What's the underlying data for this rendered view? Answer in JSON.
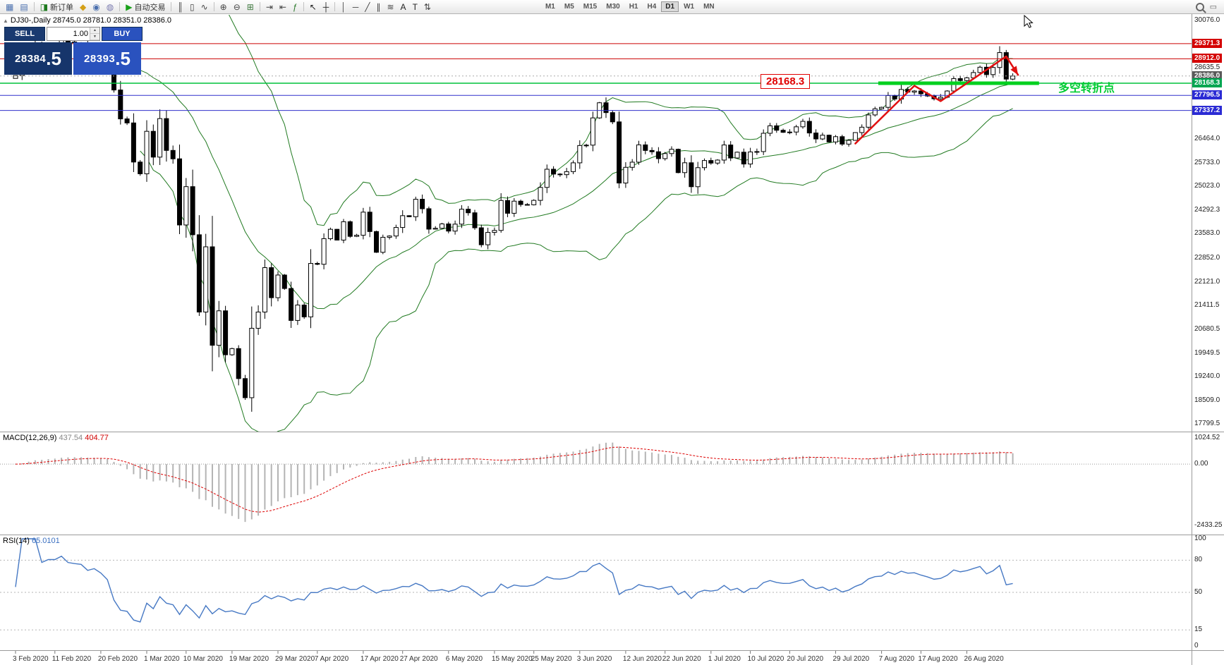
{
  "toolbar": {
    "items": [
      {
        "name": "new-chart",
        "glyph": "▦",
        "color": "#4a6fae"
      },
      {
        "name": "profiles",
        "glyph": "▤",
        "color": "#4a6fae"
      },
      {
        "sep": true
      },
      {
        "name": "new-order",
        "glyph": "◨",
        "color": "#1d7a1d",
        "label": "新订单"
      },
      {
        "name": "mql-wizard",
        "glyph": "◆",
        "color": "#d4a017"
      },
      {
        "name": "strategy-tester",
        "glyph": "◉",
        "color": "#4a6fae"
      },
      {
        "name": "data-window",
        "glyph": "◍",
        "color": "#7a7ab0"
      },
      {
        "sep": true
      },
      {
        "name": "auto-trading",
        "glyph": "▶",
        "color": "#18a018",
        "label": "自动交易"
      },
      {
        "sep": true
      },
      {
        "name": "bar-chart",
        "glyph": "║",
        "color": "#444"
      },
      {
        "name": "candlestick-chart",
        "glyph": "▯",
        "color": "#444"
      },
      {
        "name": "line-chart",
        "glyph": "∿",
        "color": "#444"
      },
      {
        "sep": true
      },
      {
        "name": "zoom-in",
        "glyph": "⊕",
        "color": "#444"
      },
      {
        "name": "zoom-out",
        "glyph": "⊖",
        "color": "#444"
      },
      {
        "name": "tile-windows",
        "glyph": "⊞",
        "color": "#3f7a3f"
      },
      {
        "sep": true
      },
      {
        "name": "auto-scroll",
        "glyph": "⇥",
        "color": "#444"
      },
      {
        "name": "chart-shift",
        "glyph": "⇤",
        "color": "#444"
      },
      {
        "name": "indicators-list",
        "glyph": "ƒ",
        "color": "#2b7a2b"
      },
      {
        "sep": true
      },
      {
        "name": "cursor",
        "glyph": "↖",
        "color": "#222"
      },
      {
        "name": "crosshair",
        "glyph": "┼",
        "color": "#222"
      },
      {
        "sep": true
      },
      {
        "name": "vertical-line",
        "glyph": "│",
        "color": "#444"
      },
      {
        "name": "horizontal-line",
        "glyph": "─",
        "color": "#444"
      },
      {
        "name": "trendline",
        "glyph": "╱",
        "color": "#444"
      },
      {
        "name": "equidistant-channel",
        "glyph": "∥",
        "color": "#444"
      },
      {
        "name": "fibonacci",
        "glyph": "≋",
        "color": "#444"
      },
      {
        "name": "text",
        "glyph": "A",
        "color": "#222"
      },
      {
        "name": "text-label",
        "glyph": "T",
        "color": "#222"
      },
      {
        "name": "arrows",
        "glyph": "⇅",
        "color": "#444"
      }
    ],
    "timeframes": {
      "options": [
        "M1",
        "M5",
        "M15",
        "M30",
        "H1",
        "H4",
        "D1",
        "W1",
        "MN"
      ],
      "active": "D1"
    }
  },
  "chart": {
    "title": "DJ30-,Daily  28745.0 28781.0 28351.0 28386.0",
    "one_click": {
      "sell_label": "SELL",
      "buy_label": "BUY",
      "volume": "1.00",
      "sell_price": "28384",
      "sell_pips": ".5",
      "buy_price": "28393",
      "buy_pips": ".5"
    },
    "annotations": {
      "price_box": "28168.3",
      "cn_label": "多空转折点"
    },
    "price_scale": {
      "grid_labels": [
        "30076.0",
        "28635.5",
        "26464.0",
        "25733.0",
        "25023.0",
        "24292.3",
        "23583.0",
        "22852.0",
        "22121.0",
        "21411.5",
        "20680.5",
        "19949.5",
        "19240.0",
        "18509.0",
        "17799.5"
      ],
      "tagged_labels": [
        {
          "text": "29371.3",
          "value": 29371.3,
          "bg": "#d40000"
        },
        {
          "text": "28912.0",
          "value": 28912.0,
          "bg": "#d40000"
        },
        {
          "text": "28386.0",
          "value": 28386.0,
          "bg": "#5a5a5a"
        },
        {
          "text": "28168.3",
          "value": 28168.3,
          "bg": "#00a651"
        },
        {
          "text": "27796.5",
          "value": 27796.5,
          "bg": "#2b2bd4"
        },
        {
          "text": "27337.2",
          "value": 27337.2,
          "bg": "#2b2bd4"
        }
      ]
    }
  },
  "chart_data": {
    "type": "candlestick",
    "symbol": "DJ30-",
    "timeframe": "Daily",
    "ylim": [
      17560,
      30250
    ],
    "closes": [
      28400,
      28808,
      29291,
      29380,
      29103,
      29277,
      29276,
      29551,
      29423,
      29398,
      29380,
      29232,
      29348,
      29220,
      28992,
      27961,
      27081,
      26958,
      25767,
      25409,
      26703,
      25917,
      27090,
      26121,
      25865,
      23851,
      25018,
      23553,
      21200,
      23186,
      20188,
      21237,
      19899,
      20087,
      19174,
      18592,
      20705,
      21200,
      22552,
      21637,
      22327,
      21917,
      20944,
      21413,
      21053,
      22680,
      22654,
      23434,
      23719,
      23391,
      23950,
      23504,
      23538,
      24242,
      23651,
      23019,
      23476,
      23515,
      23775,
      24134,
      24102,
      24634,
      24346,
      23724,
      23750,
      23883,
      23665,
      23876,
      24331,
      24222,
      23765,
      23248,
      23625,
      23685,
      24597,
      24207,
      24576,
      24474,
      24465,
      24600,
      24995,
      25548,
      25401,
      25383,
      25475,
      25743,
      26270,
      26282,
      27111,
      27572,
      27272,
      26990,
      25128,
      25606,
      25763,
      26290,
      26120,
      26080,
      25871,
      26025,
      26156,
      25445,
      25745,
      25016,
      25596,
      25813,
      25735,
      25827,
      26287,
      25890,
      26067,
      25707,
      26075,
      26086,
      26643,
      26870,
      26735,
      26672,
      26681,
      26840,
      27006,
      26652,
      26470,
      26585,
      26379,
      26540,
      26313,
      26428,
      26664,
      26828,
      27202,
      27387,
      27433,
      27791,
      27686,
      27977,
      27897,
      27931,
      27845,
      27778,
      27693,
      27740,
      27930,
      28308,
      28248,
      28332,
      28492,
      28654,
      28430,
      28646,
      29100,
      28292,
      28386
    ],
    "x_labels": [
      {
        "label": "3 Feb 2020",
        "bar": 0
      },
      {
        "label": "11 Feb 2020",
        "bar": 6
      },
      {
        "label": "20 Feb 2020",
        "bar": 13
      },
      {
        "label": "1 Mar 2020",
        "bar": 20
      },
      {
        "label": "10 Mar 2020",
        "bar": 26
      },
      {
        "label": "19 Mar 2020",
        "bar": 33
      },
      {
        "label": "29 Mar 2020",
        "bar": 40
      },
      {
        "label": "7 Apr 2020",
        "bar": 46
      },
      {
        "label": "17 Apr 2020",
        "bar": 53
      },
      {
        "label": "27 Apr 2020",
        "bar": 59
      },
      {
        "label": "6 May 2020",
        "bar": 66
      },
      {
        "label": "15 May 2020",
        "bar": 73
      },
      {
        "label": "25 May 2020",
        "bar": 79
      },
      {
        "label": "3 Jun 2020",
        "bar": 86
      },
      {
        "label": "12 Jun 2020",
        "bar": 93
      },
      {
        "label": "22 Jun 2020",
        "bar": 99
      },
      {
        "label": "1 Jul 2020",
        "bar": 106
      },
      {
        "label": "10 Jul 2020",
        "bar": 112
      },
      {
        "label": "20 Jul 2020",
        "bar": 118
      },
      {
        "label": "29 Jul 2020",
        "bar": 125
      },
      {
        "label": "7 Aug 2020",
        "bar": 132
      },
      {
        "label": "17 Aug 2020",
        "bar": 138
      },
      {
        "label": "26 Aug 2020",
        "bar": 145
      }
    ],
    "overlays": {
      "bollinger": {
        "period": 20,
        "deviation": 2,
        "color": "#217a21"
      },
      "current_price_line": {
        "price": 28386.0,
        "color": "#aaaaaa"
      },
      "hlines": [
        {
          "price": 29371.3,
          "color": "#cc0000",
          "width": 1
        },
        {
          "price": 28912.0,
          "color": "#cc0000",
          "width": 1
        },
        {
          "price": 28168.3,
          "color": "#00c23c",
          "width": 1.5
        },
        {
          "price": 27796.5,
          "color": "#3030cc",
          "width": 1
        },
        {
          "price": 27337.2,
          "color": "#3030cc",
          "width": 1
        }
      ],
      "support_segment": {
        "price": 28168.3,
        "bar_start": 131.5,
        "bar_end": 156,
        "color": "#00d01e",
        "width": 5
      },
      "trend_arrow": {
        "color": "#e01010",
        "points": [
          [
            128,
            26330
          ],
          [
            137,
            28090
          ],
          [
            141,
            27620
          ],
          [
            151,
            28985
          ],
          [
            152.8,
            28420
          ]
        ]
      }
    }
  },
  "indicators": {
    "macd": {
      "name": "MACD(12,26,9)",
      "value_main": "437.54",
      "value_signal": "404.77",
      "fast": 12,
      "slow": 26,
      "signal": 9,
      "scale_labels": [
        {
          "text": "1024.52",
          "v": 1024.52
        },
        {
          "text": "0.00",
          "v": 0
        },
        {
          "text": "-2433.25",
          "v": -2433.25
        }
      ]
    },
    "rsi": {
      "name": "RSI(14)",
      "value": "65.0101",
      "period": 14,
      "levels": [
        80,
        50,
        15
      ],
      "scale_labels": [
        {
          "text": "100",
          "v": 100
        },
        {
          "text": "80",
          "v": 80
        },
        {
          "text": "50",
          "v": 50
        },
        {
          "text": "15",
          "v": 15
        },
        {
          "text": "0",
          "v": 0
        }
      ]
    }
  }
}
